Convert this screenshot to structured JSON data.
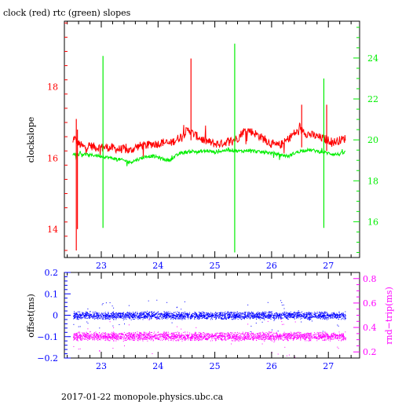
{
  "title": "clock (red) rtc (green) slopes",
  "footer": "2017-01-22  monopole.physics.ubc.ca",
  "colors": {
    "clock": "#ff0000",
    "rtc": "#00ee00",
    "offset": "#0000ff",
    "rnd_trip": "#ff00ff",
    "axes": "#000000"
  },
  "chart_data": [
    {
      "type": "line",
      "title": "clock (red) rtc (green) slopes",
      "ylabel": "clockslope",
      "xlim": [
        22.35,
        27.55
      ],
      "ylim": [
        13.2,
        19.85
      ],
      "y2lim": [
        14.25,
        25.8
      ],
      "xticks": [
        23,
        24,
        25,
        26,
        27
      ],
      "yticks": [
        14,
        16,
        18
      ],
      "y2ticks": [
        16,
        18,
        20,
        22,
        24
      ],
      "grid": false,
      "series": [
        {
          "name": "clock",
          "axis": "left",
          "x": [
            22.5,
            22.52,
            22.55,
            22.6,
            22.7,
            22.8,
            22.9,
            23.0,
            23.1,
            23.2,
            23.3,
            23.4,
            23.5,
            23.6,
            23.7,
            23.8,
            23.9,
            24.0,
            24.1,
            24.2,
            24.3,
            24.4,
            24.5,
            24.55,
            24.6,
            24.7,
            24.8,
            24.9,
            25.0,
            25.1,
            25.2,
            25.3,
            25.4,
            25.5,
            25.6,
            25.7,
            25.8,
            25.9,
            26.0,
            26.1,
            26.2,
            26.3,
            26.4,
            26.5,
            26.55,
            26.6,
            26.7,
            26.8,
            26.9,
            27.0,
            27.1,
            27.2,
            27.3
          ],
          "y": [
            16.4,
            16.6,
            16.5,
            16.4,
            16.3,
            16.35,
            16.3,
            16.3,
            16.3,
            16.28,
            16.25,
            16.25,
            16.2,
            16.3,
            16.35,
            16.35,
            16.4,
            16.4,
            16.45,
            16.4,
            16.5,
            16.6,
            16.75,
            16.8,
            16.7,
            16.6,
            16.5,
            16.45,
            16.4,
            16.4,
            16.45,
            16.5,
            16.55,
            16.75,
            16.78,
            16.7,
            16.6,
            16.5,
            16.4,
            16.35,
            16.4,
            16.55,
            16.7,
            16.75,
            16.8,
            16.7,
            16.65,
            16.6,
            16.55,
            16.5,
            16.45,
            16.5,
            16.55
          ]
        },
        {
          "name": "rtc",
          "axis": "right",
          "x": [
            22.5,
            22.6,
            22.7,
            22.8,
            22.9,
            23.0,
            23.1,
            23.2,
            23.3,
            23.4,
            23.5,
            23.6,
            23.7,
            23.8,
            23.9,
            24.0,
            24.1,
            24.2,
            24.3,
            24.4,
            24.5,
            24.6,
            24.7,
            24.8,
            24.9,
            25.0,
            25.1,
            25.2,
            25.3,
            25.4,
            25.5,
            25.6,
            25.7,
            25.8,
            25.9,
            26.0,
            26.1,
            26.2,
            26.3,
            26.4,
            26.5,
            26.6,
            26.7,
            26.8,
            26.9,
            27.0,
            27.1,
            27.2,
            27.3
          ],
          "y": [
            19.3,
            19.3,
            19.3,
            19.25,
            19.25,
            19.2,
            19.15,
            19.1,
            19.05,
            19.0,
            18.9,
            19.0,
            19.1,
            19.2,
            19.2,
            19.15,
            19.05,
            19.0,
            19.2,
            19.35,
            19.4,
            19.45,
            19.4,
            19.45,
            19.45,
            19.4,
            19.45,
            19.5,
            19.5,
            19.45,
            19.45,
            19.5,
            19.45,
            19.4,
            19.4,
            19.35,
            19.3,
            19.25,
            19.2,
            19.35,
            19.45,
            19.5,
            19.5,
            19.45,
            19.4,
            19.35,
            19.3,
            19.3,
            19.4
          ]
        }
      ],
      "spikes": [
        {
          "series": "clock",
          "x": 22.56,
          "y_min": 13.4,
          "y_max": 17.1
        },
        {
          "series": "clock",
          "x": 22.58,
          "y_min": 14.0,
          "y_max": 16.8
        },
        {
          "series": "rtc",
          "x": 23.03,
          "y_min": 15.7,
          "y_max": 24.1
        },
        {
          "series": "clock",
          "x": 24.58,
          "y_min": 16.5,
          "y_max": 18.8
        },
        {
          "series": "rtc",
          "x": 25.35,
          "y_min": 14.5,
          "y_max": 24.7
        },
        {
          "series": "clock",
          "x": 26.53,
          "y_min": 16.3,
          "y_max": 17.5
        },
        {
          "series": "rtc",
          "x": 26.92,
          "y_min": 15.7,
          "y_max": 23.0
        },
        {
          "series": "clock",
          "x": 26.97,
          "y_min": 16.2,
          "y_max": 17.5
        }
      ]
    },
    {
      "type": "scatter",
      "ylabel": "offset(ms)",
      "y2label": "rnd−trip(ms)",
      "xlim": [
        22.35,
        27.55
      ],
      "ylim": [
        -0.2,
        0.2
      ],
      "y2lim": [
        0.15,
        0.85
      ],
      "xticks": [
        23,
        24,
        25,
        26,
        27
      ],
      "yticks": [
        -0.2,
        -0.1,
        0,
        0.1,
        0.2
      ],
      "y2ticks": [
        0.2,
        0.4,
        0.6,
        0.8
      ],
      "ytick_labels": [
        "−0.2",
        "−0.1",
        "0",
        "0.1",
        "0.2"
      ],
      "y2tick_labels": [
        "0.2",
        "0.4",
        "0.6",
        "0.8"
      ],
      "grid": false,
      "series": [
        {
          "name": "offset",
          "axis": "left",
          "x_range": [
            22.5,
            27.3
          ],
          "center": 0.0,
          "band": 0.02
        },
        {
          "name": "rnd-trip",
          "axis": "right",
          "x_range": [
            22.5,
            27.3
          ],
          "center": 0.33,
          "band": 0.04
        }
      ]
    }
  ]
}
